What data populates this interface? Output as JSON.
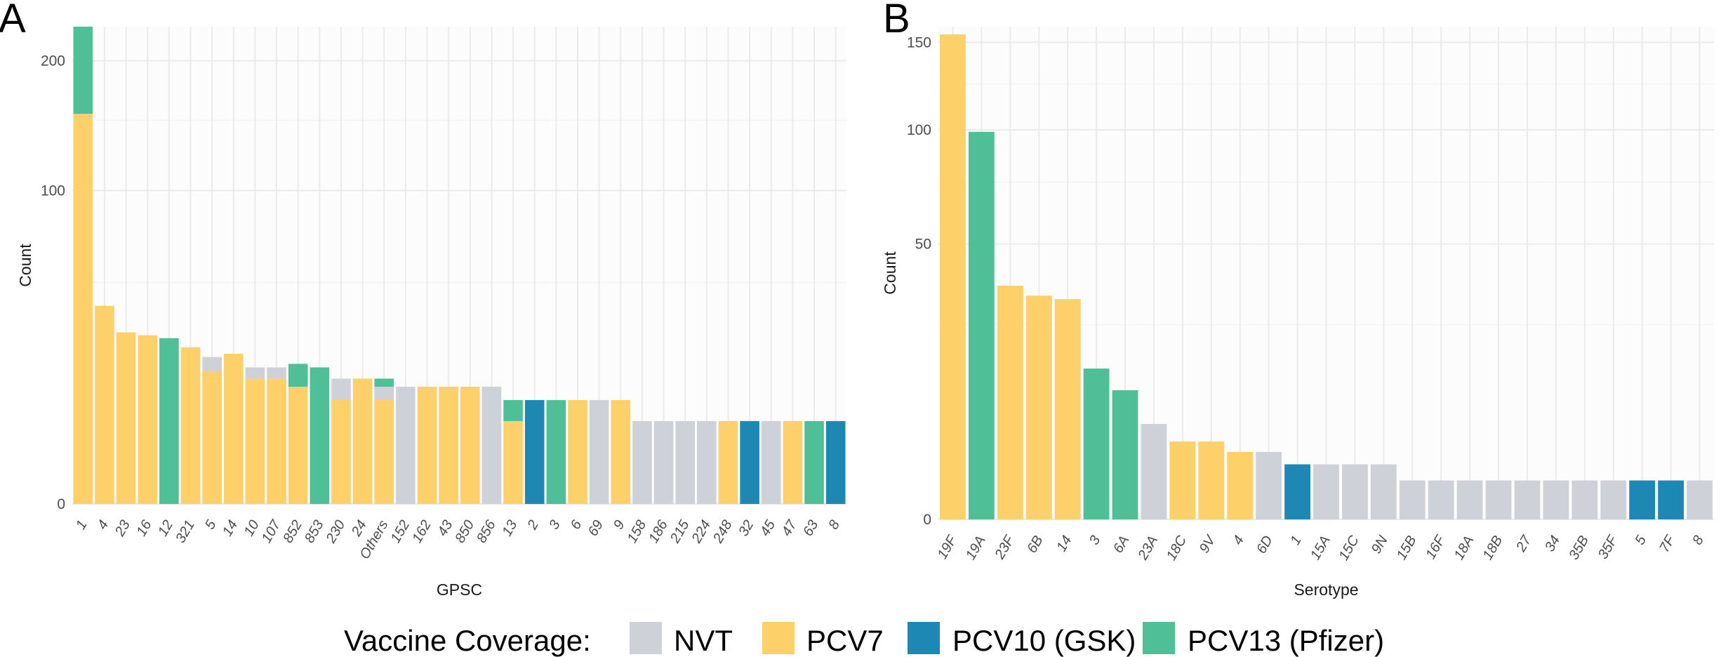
{
  "colors": {
    "NVT": "#ced2d8",
    "PCV7": "#fdd06a",
    "PCV10": "#1e88b4",
    "PCV13": "#4fbf98"
  },
  "legend": {
    "title": "Vaccine Coverage:",
    "items": [
      {
        "key": "NVT",
        "label": "NVT"
      },
      {
        "key": "PCV7",
        "label": "PCV7"
      },
      {
        "key": "PCV10",
        "label": "PCV10 (GSK)"
      },
      {
        "key": "PCV13",
        "label": "PCV13 (Pfizer)"
      }
    ]
  },
  "chart_data": [
    {
      "panel": "A",
      "type": "bar",
      "stacked": true,
      "xlabel": "GPSC",
      "ylabel": "Count",
      "y_scale": "sqrt",
      "ylim": [
        0,
        232
      ],
      "y_ticks": [
        0,
        100,
        200
      ],
      "categories": [
        "1",
        "4",
        "23",
        "16",
        "12",
        "321",
        "5",
        "14",
        "10",
        "107",
        "852",
        "853",
        "230",
        "24",
        "Others",
        "152",
        "162",
        "43",
        "850",
        "856",
        "13",
        "2",
        "3",
        "6",
        "69",
        "9",
        "158",
        "186",
        "215",
        "224",
        "248",
        "32",
        "45",
        "47",
        "63",
        "8"
      ],
      "series": [
        {
          "key": "PCV7",
          "values": [
            155,
            40,
            30,
            29,
            0,
            25,
            18,
            23,
            16,
            16,
            14,
            0,
            11,
            16,
            11,
            0,
            14,
            14,
            14,
            0,
            7,
            0,
            0,
            11,
            0,
            11,
            0,
            0,
            0,
            0,
            7,
            0,
            0,
            7,
            0,
            0
          ]
        },
        {
          "key": "NVT",
          "values": [
            0,
            0,
            0,
            0,
            0,
            0,
            4,
            0,
            3,
            3,
            0,
            0,
            5,
            0,
            3,
            14,
            0,
            0,
            0,
            14,
            0,
            0,
            0,
            0,
            11,
            0,
            7,
            7,
            7,
            7,
            0,
            0,
            7,
            0,
            0,
            0
          ]
        },
        {
          "key": "PCV13",
          "values": [
            77,
            0,
            0,
            0,
            28,
            0,
            0,
            0,
            0,
            0,
            6,
            19,
            0,
            0,
            2,
            0,
            0,
            0,
            0,
            0,
            4,
            0,
            11,
            0,
            0,
            0,
            0,
            0,
            0,
            0,
            0,
            0,
            0,
            0,
            7,
            0
          ]
        },
        {
          "key": "PCV10",
          "values": [
            0,
            0,
            0,
            0,
            0,
            0,
            0,
            0,
            0,
            0,
            0,
            0,
            0,
            0,
            0,
            0,
            0,
            0,
            0,
            0,
            0,
            11,
            0,
            0,
            0,
            0,
            0,
            0,
            0,
            0,
            0,
            7,
            0,
            0,
            0,
            7
          ]
        }
      ]
    },
    {
      "panel": "B",
      "type": "bar",
      "xlabel": "Serotype",
      "ylabel": "Count",
      "y_scale": "sqrt",
      "ylim": [
        0,
        160
      ],
      "y_ticks": [
        0,
        50,
        100,
        150
      ],
      "categories": [
        "19F",
        "19A",
        "23F",
        "6B",
        "14",
        "3",
        "6A",
        "23A",
        "18C",
        "9V",
        "4",
        "6D",
        "1",
        "15A",
        "15C",
        "9N",
        "15B",
        "16F",
        "18A",
        "18B",
        "27",
        "34",
        "35B",
        "35F",
        "5",
        "7F",
        "8"
      ],
      "values": [
        155,
        99,
        36,
        33,
        32,
        15,
        11,
        6,
        4,
        4,
        3,
        3,
        2,
        2,
        2,
        2,
        1,
        1,
        1,
        1,
        1,
        1,
        1,
        1,
        1,
        1,
        1
      ],
      "coverage": [
        "PCV7",
        "PCV13",
        "PCV7",
        "PCV7",
        "PCV7",
        "PCV13",
        "PCV13",
        "NVT",
        "PCV7",
        "PCV7",
        "PCV7",
        "NVT",
        "PCV10",
        "NVT",
        "NVT",
        "NVT",
        "NVT",
        "NVT",
        "NVT",
        "NVT",
        "NVT",
        "NVT",
        "NVT",
        "NVT",
        "PCV10",
        "PCV10",
        "NVT"
      ]
    }
  ]
}
